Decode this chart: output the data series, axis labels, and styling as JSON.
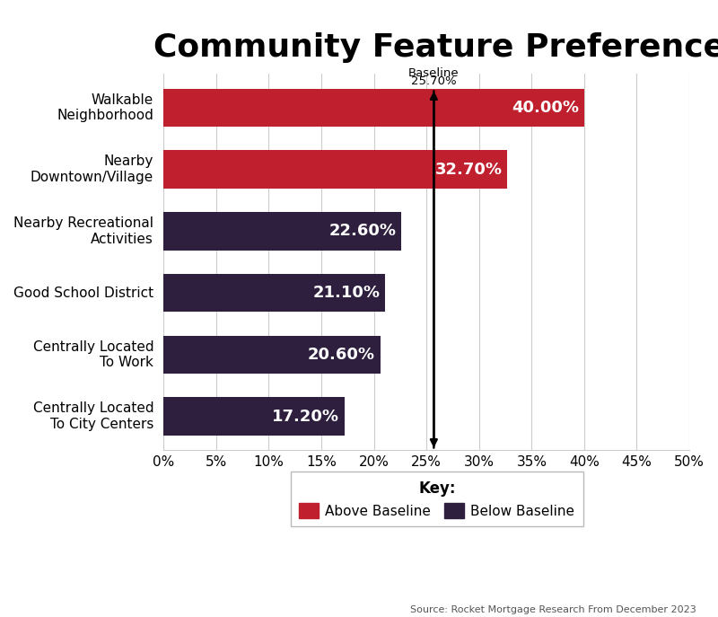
{
  "title": "Community Feature Preferences",
  "categories": [
    "Centrally Located\nTo City Centers",
    "Centrally Located\nTo Work",
    "Good School District",
    "Nearby Recreational\nActivities",
    "Nearby\nDowntown/Village",
    "Walkable\nNeighborhood"
  ],
  "values": [
    17.2,
    20.6,
    21.1,
    22.6,
    32.7,
    40.0
  ],
  "colors": [
    "#2d1f3d",
    "#2d1f3d",
    "#2d1f3d",
    "#2d1f3d",
    "#c0202e",
    "#c0202e"
  ],
  "bar_labels": [
    "17.20%",
    "20.60%",
    "21.10%",
    "22.60%",
    "32.70%",
    "40.00%"
  ],
  "baseline": 25.7,
  "baseline_label_line1": "Baseline",
  "baseline_label_line2": "25.70%",
  "xlim": [
    0,
    50
  ],
  "xticks": [
    0,
    5,
    10,
    15,
    20,
    25,
    30,
    35,
    40,
    45,
    50
  ],
  "xticklabels": [
    "0%",
    "5%",
    "10%",
    "15%",
    "20%",
    "25%",
    "30%",
    "35%",
    "40%",
    "45%",
    "50%"
  ],
  "above_color": "#c0202e",
  "below_color": "#2d1f3d",
  "legend_key_label": "Key:",
  "legend_above_label": "Above Baseline",
  "legend_below_label": "Below Baseline",
  "source_text": "Source: Rocket Mortgage Research From December 2023",
  "background_color": "#ffffff",
  "grid_color": "#cccccc",
  "bar_label_color": "#ffffff",
  "bar_label_fontsize": 13,
  "title_fontsize": 26,
  "ytick_fontsize": 11,
  "xtick_fontsize": 11,
  "arrow_color": "#000000",
  "bar_height": 0.62
}
